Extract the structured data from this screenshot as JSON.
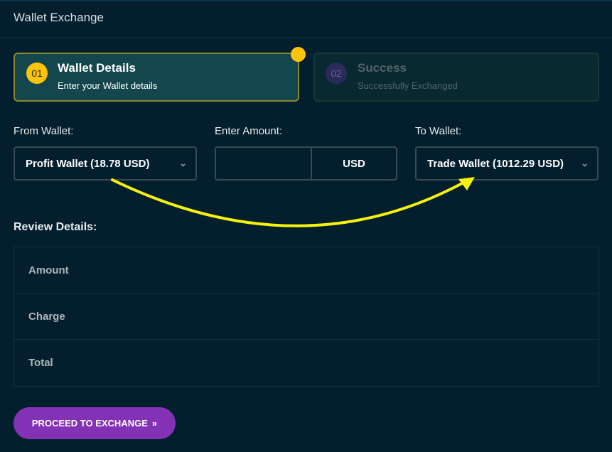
{
  "header": {
    "title": "Wallet Exchange"
  },
  "steps": [
    {
      "number": "01",
      "title": "Wallet Details",
      "subtitle": "Enter your Wallet details",
      "active": true
    },
    {
      "number": "02",
      "title": "Success",
      "subtitle": "Successfully Exchanged",
      "active": false
    }
  ],
  "form": {
    "from_label": "From Wallet:",
    "from_value": "Profit Wallet (18.78 USD)",
    "amount_label": "Enter Amount:",
    "amount_value": "",
    "currency": "USD",
    "to_label": "To Wallet:",
    "to_value": "Trade Wallet (1012.29 USD)"
  },
  "review": {
    "title": "Review Details:",
    "rows": [
      "Amount",
      "Charge",
      "Total"
    ]
  },
  "proceed_button": {
    "label": "PROCEED TO EXCHANGE",
    "icon": "»"
  },
  "colors": {
    "accent": "#fec30b",
    "button": "#8331b5",
    "annotation_arrow": "#f5f20a"
  }
}
